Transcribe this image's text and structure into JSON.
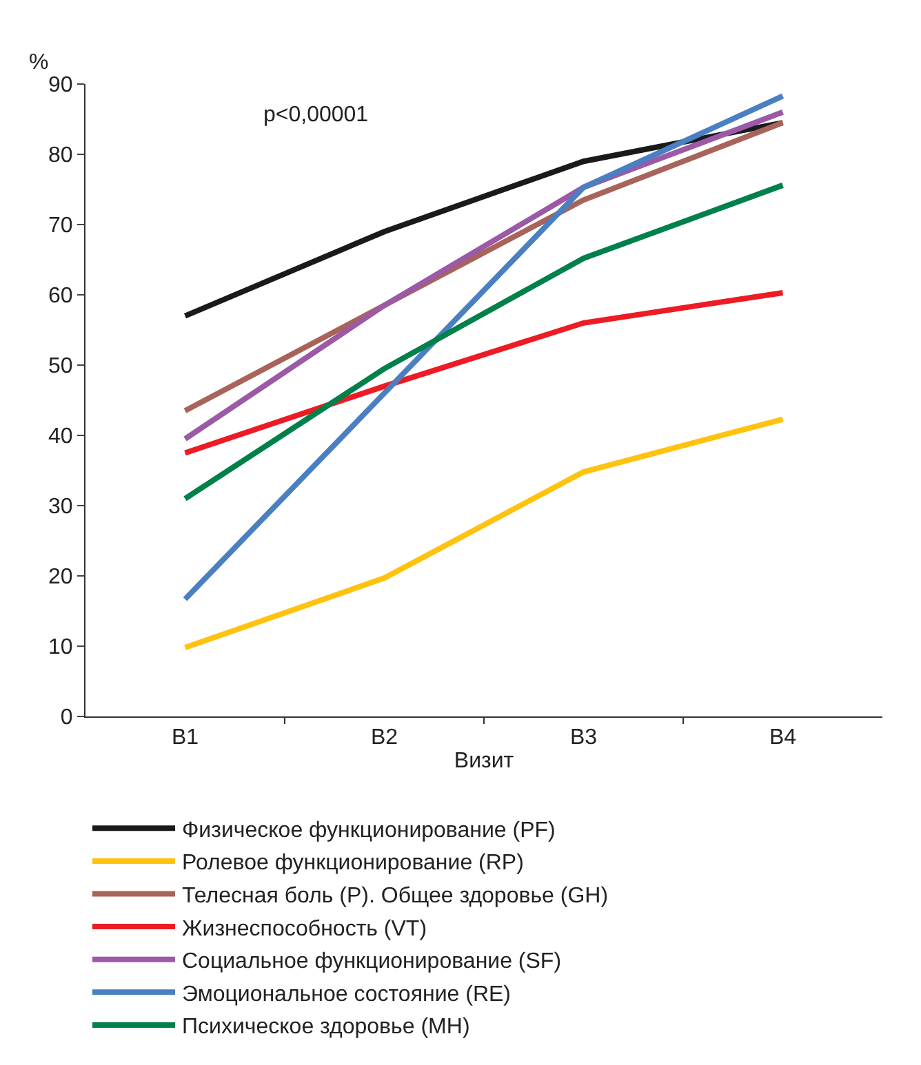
{
  "chart_data": {
    "type": "line",
    "ylabel": "%",
    "xlabel": "Визит",
    "categories": [
      "B1",
      "B2",
      "B3",
      "B4"
    ],
    "ylim": [
      0,
      90
    ],
    "yticks": [
      0,
      10,
      20,
      30,
      40,
      50,
      60,
      70,
      80,
      90
    ],
    "legend": "bottom",
    "marker": "none",
    "line_style": "solid",
    "annotations": [
      "p<0,00001"
    ],
    "series": [
      {
        "name": "Физическое функционирование (PF)",
        "color": "#1a1a1a",
        "values": [
          57,
          69,
          79,
          84.5
        ]
      },
      {
        "name": "Ролевое функционирование (RP)",
        "color": "#ffc20e",
        "values": [
          9.8,
          19.7,
          34.8,
          42.3
        ]
      },
      {
        "name": "Телесная боль (P). Общее здоровье (GH)",
        "color": "#a8645a",
        "values": [
          43.5,
          58.5,
          73.5,
          84.5
        ]
      },
      {
        "name": "Жизнеспособность (VT)",
        "color": "#ed1c24",
        "values": [
          37.5,
          47,
          56,
          60.3
        ]
      },
      {
        "name": "Социальное функционирование (SF)",
        "color": "#9b59a6",
        "values": [
          39.5,
          58.5,
          75.3,
          86
        ]
      },
      {
        "name": "Эмоциональное состояние (RE)",
        "color": "#4a7fc1",
        "values": [
          16.7,
          46,
          75.3,
          88.3
        ]
      },
      {
        "name": "Психическое здоровье (MH)",
        "color": "#00804a",
        "values": [
          31,
          49.5,
          65.2,
          75.6
        ]
      }
    ]
  }
}
